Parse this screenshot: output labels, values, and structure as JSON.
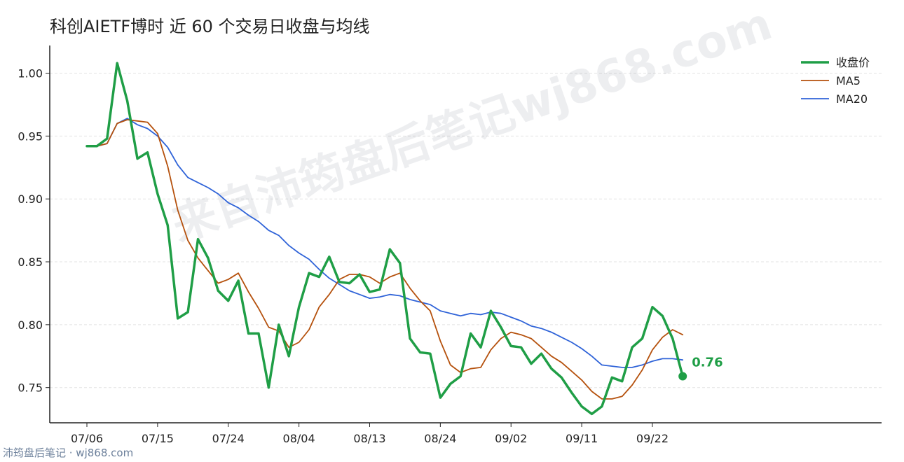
{
  "title": "科创AIETF博时 近 60 个交易日收盘与均线",
  "watermark": "来自沛筠盘后笔记wj868.com",
  "footer": "沛筠盘后笔记 · wj868.com",
  "colors": {
    "close": "#1f9e46",
    "ma5": "#b5510d",
    "ma20": "#2f63d8",
    "grid": "#e3e3e3",
    "axis": "#222222"
  },
  "chart_data": {
    "type": "line",
    "title": "科创AIETF博时 近 60 个交易日收盘与均线",
    "xlabel": "",
    "ylabel": "",
    "ylim": [
      0.722,
      1.022
    ],
    "yticks": [
      0.75,
      0.8,
      0.85,
      0.9,
      0.95,
      1.0
    ],
    "ytick_labels": [
      "0.75",
      "0.80",
      "0.85",
      "0.90",
      "0.95",
      "1.00"
    ],
    "xticks": [
      {
        "index": 0,
        "label": "07/06"
      },
      {
        "index": 7,
        "label": "07/15"
      },
      {
        "index": 14,
        "label": "07/24"
      },
      {
        "index": 21,
        "label": "08/04"
      },
      {
        "index": 28,
        "label": "08/13"
      },
      {
        "index": 35,
        "label": "08/24"
      },
      {
        "index": 42,
        "label": "09/02"
      },
      {
        "index": 49,
        "label": "09/11"
      },
      {
        "index": 56,
        "label": "09/22"
      }
    ],
    "grid": "horizontal",
    "legend_position": "top-right",
    "last_value_label": "0.76",
    "series": [
      {
        "name": "收盘价",
        "key": "close",
        "values": [
          0.942,
          0.942,
          0.948,
          1.008,
          0.978,
          0.932,
          0.937,
          0.904,
          0.879,
          0.805,
          0.81,
          0.868,
          0.853,
          0.827,
          0.819,
          0.835,
          0.793,
          0.793,
          0.75,
          0.8,
          0.775,
          0.814,
          0.841,
          0.838,
          0.854,
          0.834,
          0.833,
          0.84,
          0.826,
          0.828,
          0.86,
          0.849,
          0.789,
          0.778,
          0.777,
          0.742,
          0.753,
          0.759,
          0.793,
          0.782,
          0.811,
          0.798,
          0.783,
          0.782,
          0.769,
          0.777,
          0.765,
          0.758,
          0.746,
          0.735,
          0.729,
          0.735,
          0.758,
          0.755,
          0.782,
          0.789,
          0.814,
          0.807,
          0.789,
          0.759
        ]
      },
      {
        "name": "MA5",
        "key": "ma5",
        "values": [
          0.942,
          0.942,
          0.944,
          0.96,
          0.963,
          0.962,
          0.961,
          0.952,
          0.926,
          0.891,
          0.867,
          0.853,
          0.843,
          0.833,
          0.836,
          0.841,
          0.826,
          0.813,
          0.798,
          0.795,
          0.782,
          0.786,
          0.796,
          0.814,
          0.824,
          0.836,
          0.84,
          0.84,
          0.838,
          0.833,
          0.838,
          0.841,
          0.829,
          0.819,
          0.811,
          0.787,
          0.768,
          0.762,
          0.765,
          0.766,
          0.78,
          0.789,
          0.794,
          0.792,
          0.789,
          0.782,
          0.775,
          0.77,
          0.763,
          0.756,
          0.747,
          0.741,
          0.741,
          0.743,
          0.752,
          0.764,
          0.78,
          0.79,
          0.796,
          0.792
        ]
      },
      {
        "name": "MA20",
        "key": "ma20",
        "values": [
          0.942,
          0.942,
          0.944,
          0.96,
          0.964,
          0.959,
          0.956,
          0.95,
          0.941,
          0.927,
          0.917,
          0.913,
          0.909,
          0.904,
          0.897,
          0.893,
          0.887,
          0.882,
          0.875,
          0.871,
          0.863,
          0.857,
          0.852,
          0.844,
          0.837,
          0.832,
          0.827,
          0.824,
          0.821,
          0.822,
          0.824,
          0.823,
          0.82,
          0.818,
          0.816,
          0.811,
          0.809,
          0.807,
          0.809,
          0.808,
          0.81,
          0.809,
          0.806,
          0.803,
          0.799,
          0.797,
          0.794,
          0.79,
          0.786,
          0.781,
          0.775,
          0.768,
          0.767,
          0.766,
          0.766,
          0.768,
          0.771,
          0.773,
          0.773,
          0.772
        ]
      }
    ]
  }
}
